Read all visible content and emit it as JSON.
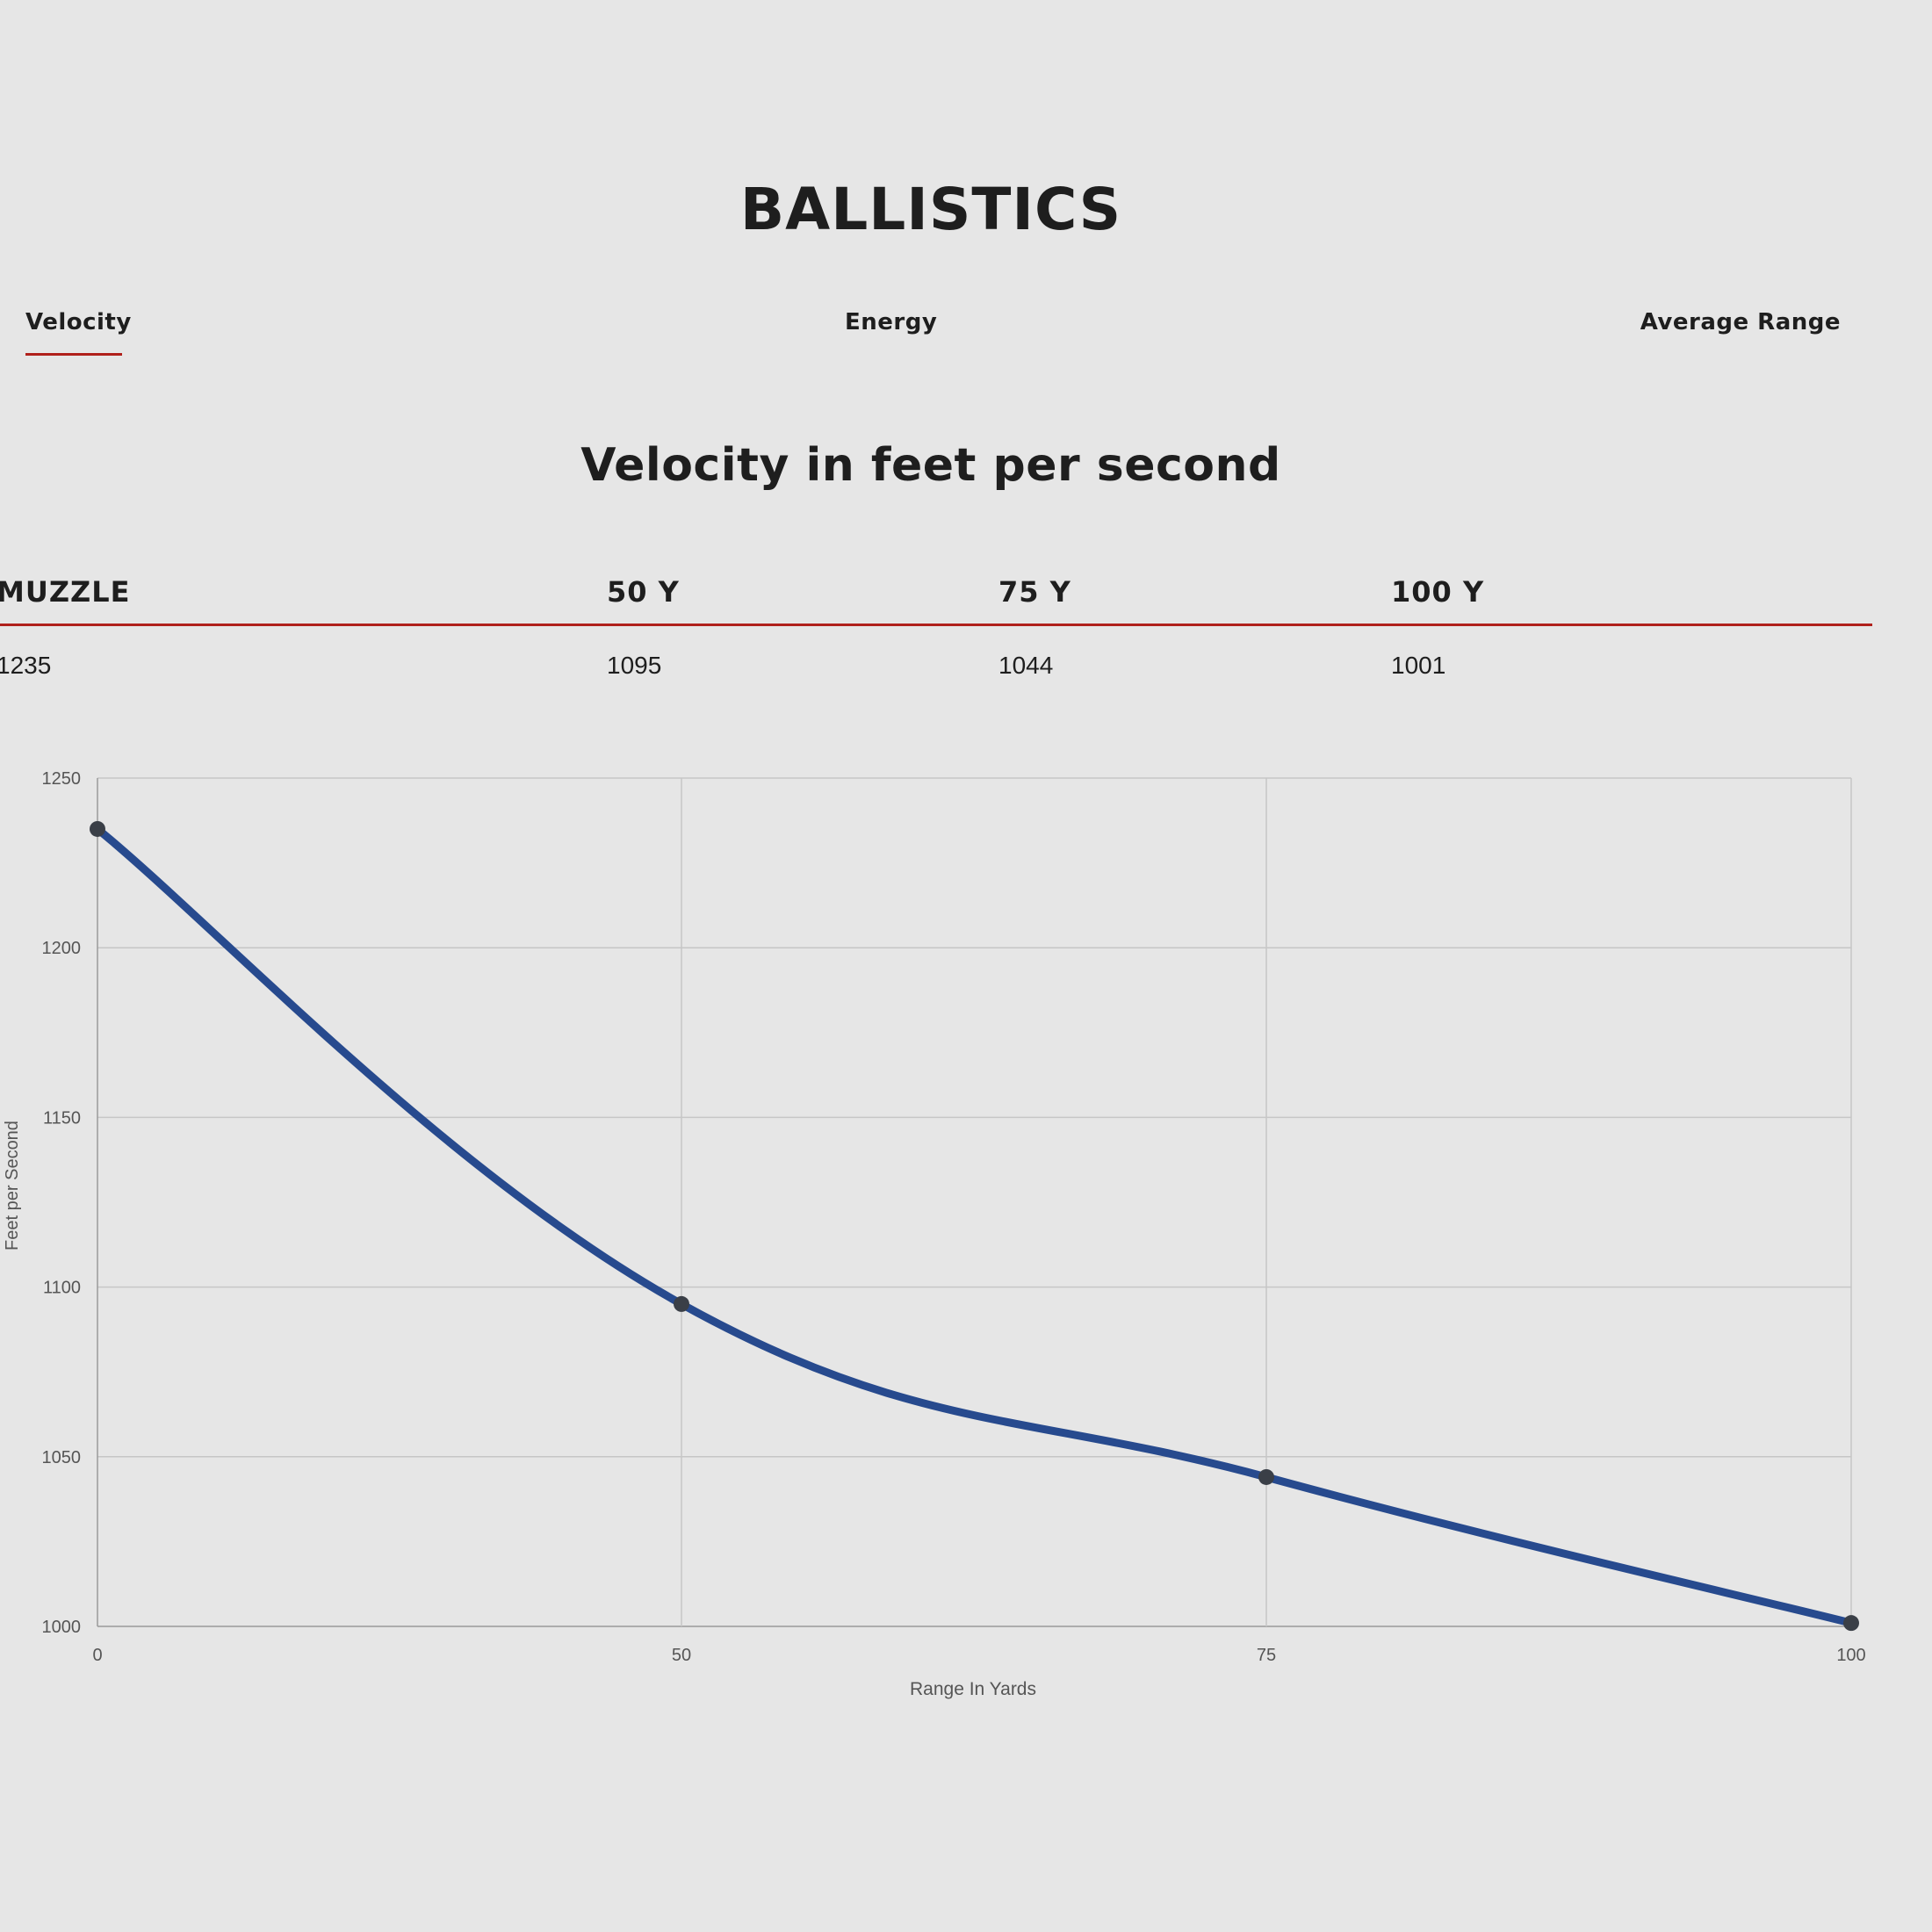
{
  "page": {
    "title": "BALLISTICS"
  },
  "tabs": [
    {
      "label": "Velocity",
      "active": true
    },
    {
      "label": "Energy",
      "active": false
    },
    {
      "label": "Average Range",
      "active": false
    }
  ],
  "section": {
    "title": "Velocity in feet per second"
  },
  "table": {
    "headers": [
      "MUZZLE",
      "50 Y",
      "75 Y",
      "100 Y"
    ],
    "values": [
      "1235",
      "1095",
      "1044",
      "1001"
    ]
  },
  "colors": {
    "accent": "#b0201b",
    "line": "#274a8e",
    "point": "#3a3f47",
    "background": "#e6e6e6"
  },
  "chart_data": {
    "type": "line",
    "xlabel": "Range In Yards",
    "ylabel": "Feet per Second",
    "x_ticks": [
      "0",
      "50",
      "75",
      "100"
    ],
    "y_ticks": [
      "1250",
      "1200",
      "1150",
      "1100",
      "1050",
      "1000"
    ],
    "ylim": [
      1000,
      1250
    ],
    "grid": true,
    "series": [
      {
        "points": [
          {
            "x": "0",
            "y": 1235
          },
          {
            "x": "50",
            "y": 1095
          },
          {
            "x": "75",
            "y": 1044
          },
          {
            "x": "100",
            "y": 1001
          }
        ]
      }
    ]
  }
}
